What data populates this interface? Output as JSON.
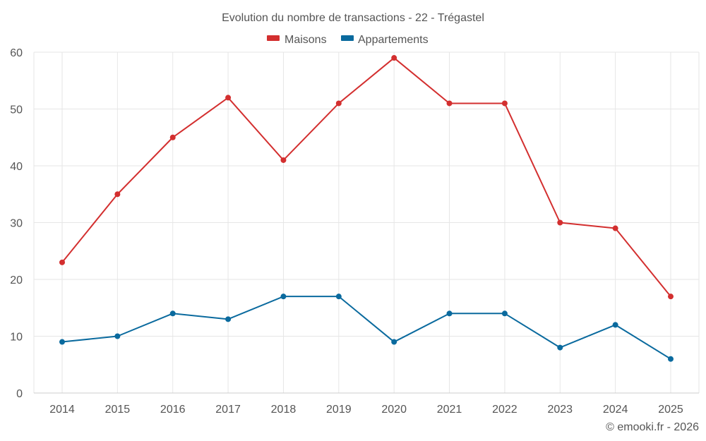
{
  "chart_data": {
    "type": "line",
    "title": "Evolution du nombre de transactions - 22 - Trégastel",
    "xlabel": "",
    "ylabel": "",
    "categories": [
      "2014",
      "2015",
      "2016",
      "2017",
      "2018",
      "2019",
      "2020",
      "2021",
      "2022",
      "2023",
      "2024",
      "2025"
    ],
    "ylim": [
      0,
      60
    ],
    "yticks": [
      0,
      10,
      20,
      30,
      40,
      50,
      60
    ],
    "grid": true,
    "legend_position": "top-center",
    "series": [
      {
        "name": "Maisons",
        "color": "#d32f2f",
        "values": [
          23,
          35,
          45,
          52,
          41,
          51,
          59,
          51,
          51,
          30,
          29,
          17
        ]
      },
      {
        "name": "Appartements",
        "color": "#0a6a9e",
        "values": [
          9,
          10,
          14,
          13,
          17,
          17,
          9,
          14,
          14,
          8,
          12,
          6
        ]
      }
    ]
  },
  "credit": "© emooki.fr - 2026"
}
